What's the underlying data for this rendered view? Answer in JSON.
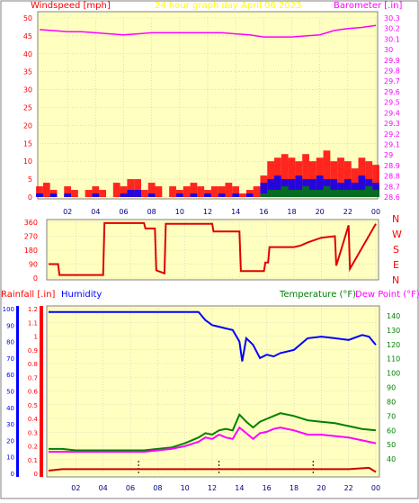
{
  "header": {
    "left_label": "Windspeed [mph]",
    "title": "24 hour graph day   April 06 2023",
    "right_label": "Barometer [.in]"
  },
  "direction_labels": [
    "N",
    "W",
    "S",
    "E",
    "N"
  ],
  "bottom_header": {
    "rain_label": "Rainfall [.in]",
    "humidity_label": "Humidity",
    "temp_label": "Temperature (°F)",
    "dew_label": "Dew Point (°F)"
  },
  "colors": {
    "plot_bg": "#ffffc0",
    "wind": "#ff0000",
    "gust": "#0000ff",
    "avg": "#008000",
    "barometer": "#ff00ff",
    "direction": "#e00000",
    "rain": "#ff0000",
    "humidity": "#0000ff",
    "temperature": "#008000",
    "dewpoint": "#ff00ff",
    "grid": "#c8c8c8",
    "header_text": "#ffff00"
  },
  "chart_data": [
    {
      "type": "bar",
      "name": "wind-barometer",
      "x_ticks": [
        "02",
        "04",
        "06",
        "08",
        "10",
        "12",
        "14",
        "16",
        "18",
        "20",
        "22",
        "00"
      ],
      "y_left": {
        "label": "Windspeed [mph]",
        "ylim": [
          0,
          50
        ],
        "ticks": [
          "0",
          "5",
          "10",
          "15",
          "20",
          "25",
          "30",
          "35",
          "40",
          "45",
          "50"
        ]
      },
      "y_right": {
        "label": "Barometer [.in]",
        "ylim": [
          28.6,
          30.3
        ],
        "ticks": [
          "28.6",
          "28.7",
          "28.8",
          "28.9",
          "29",
          "29.1",
          "29.2",
          "29.3",
          "29.4",
          "29.5",
          "29.6",
          "29.7",
          "29.8",
          "29.9",
          "30",
          "30.1",
          "30.2",
          "30.3"
        ]
      },
      "grid": true,
      "series": [
        {
          "key": "windspeed",
          "kind": "bars",
          "color": "#ff0000",
          "x": [
            0,
            0.5,
            1,
            1.5,
            2,
            2.5,
            3,
            3.5,
            4,
            4.5,
            5,
            5.5,
            6,
            6.5,
            7,
            7.5,
            8,
            8.5,
            9,
            9.5,
            10,
            10.5,
            11,
            11.5,
            12,
            12.5,
            13,
            13.5,
            14,
            14.5,
            15,
            15.5,
            16,
            16.5,
            17,
            17.5,
            18,
            18.5,
            19,
            19.5,
            20,
            20.5,
            21,
            21.5,
            22,
            22.5,
            23,
            23.5,
            24
          ],
          "values": [
            3,
            4,
            2,
            0,
            3,
            2,
            0,
            2,
            3,
            2,
            0,
            4,
            3,
            5,
            5,
            2,
            4,
            3,
            0,
            3,
            2,
            3,
            4,
            3,
            2,
            3,
            3,
            4,
            3,
            1,
            2,
            3,
            6,
            10,
            11,
            12,
            11,
            10,
            12,
            10,
            11,
            13,
            10,
            11,
            10,
            8,
            11,
            10,
            9
          ]
        },
        {
          "key": "gust",
          "kind": "bars",
          "color": "#0000ff",
          "x": [
            0,
            1,
            2,
            3,
            4,
            5,
            6,
            6.5,
            7,
            8,
            9,
            10,
            11,
            12,
            13,
            14,
            15,
            16,
            16.5,
            17,
            17.5,
            18,
            18.5,
            19,
            19.5,
            20,
            20.5,
            21,
            21.5,
            22,
            22.5,
            23,
            23.5,
            24
          ],
          "values": [
            1,
            1,
            1,
            0,
            1,
            0,
            1,
            2,
            2,
            1,
            0,
            1,
            1,
            1,
            1,
            1,
            1,
            4,
            5,
            6,
            5,
            5,
            6,
            5,
            5,
            6,
            5,
            5,
            4,
            5,
            4,
            6,
            5,
            4
          ]
        },
        {
          "key": "average",
          "kind": "bars",
          "color": "#008000",
          "x": [
            16,
            16.5,
            17,
            17.5,
            18,
            18.5,
            19,
            19.5,
            20,
            20.5,
            21,
            21.5,
            22,
            22.5,
            23,
            23.5,
            24
          ],
          "values": [
            1,
            2,
            2,
            3,
            2,
            2,
            3,
            2,
            2,
            3,
            2,
            2,
            2,
            2,
            2,
            3,
            2
          ]
        },
        {
          "key": "barometer",
          "kind": "line",
          "color": "#ff00ff",
          "x": [
            0,
            1,
            2,
            3,
            4,
            5,
            6,
            7,
            8,
            9,
            10,
            11,
            12,
            13,
            14,
            15,
            16,
            17,
            18,
            19,
            20,
            21,
            22,
            23,
            24
          ],
          "values": [
            30.19,
            30.18,
            30.17,
            30.17,
            30.16,
            30.15,
            30.14,
            30.15,
            30.16,
            30.16,
            30.16,
            30.16,
            30.16,
            30.16,
            30.15,
            30.14,
            30.12,
            30.12,
            30.12,
            30.13,
            30.14,
            30.18,
            30.2,
            30.21,
            30.23
          ]
        }
      ]
    },
    {
      "type": "line",
      "name": "wind-direction",
      "x_ticks": [
        "02",
        "04",
        "06",
        "08",
        "10",
        "12",
        "14",
        "16",
        "18",
        "20",
        "22",
        "00"
      ],
      "y_left": {
        "ylim": [
          0,
          360
        ],
        "ticks": [
          "0",
          "90",
          "180",
          "270",
          "360"
        ]
      },
      "grid": true,
      "series": [
        {
          "key": "direction",
          "color": "#e00000",
          "x": [
            0,
            0.7,
            0.8,
            4,
            4.1,
            7,
            7.1,
            7.8,
            7.9,
            8.5,
            8.6,
            12,
            12.1,
            14,
            14.1,
            15.8,
            15.9,
            16.1,
            16.2,
            18,
            18.5,
            19,
            20,
            21,
            21.1,
            22,
            22.1,
            24
          ],
          "values": [
            90,
            90,
            20,
            20,
            355,
            355,
            320,
            320,
            50,
            30,
            350,
            350,
            300,
            300,
            45,
            45,
            100,
            100,
            200,
            200,
            210,
            230,
            260,
            270,
            80,
            340,
            60,
            350
          ]
        }
      ]
    },
    {
      "type": "line",
      "name": "rain-humidity-temperature",
      "x_ticks": [
        "02",
        "04",
        "06",
        "08",
        "10",
        "12",
        "14",
        "16",
        "18",
        "20",
        "22",
        "00"
      ],
      "y_rain": {
        "label": "Rainfall [.in]",
        "ylim": [
          0,
          1.2
        ],
        "ticks": [
          "0",
          "0.1",
          "0.2",
          "0.3",
          "0.4",
          "0.5",
          "0.6",
          "0.7",
          "0.8",
          "0.9",
          "1",
          "1.1",
          "1.2"
        ]
      },
      "y_humidity": {
        "label": "Humidity",
        "ylim": [
          0,
          100
        ],
        "ticks": [
          "0",
          "10",
          "20",
          "30",
          "40",
          "50",
          "60",
          "70",
          "80",
          "90",
          "100"
        ]
      },
      "y_right": {
        "label": "Temperature (°F)",
        "ylim": [
          30,
          145
        ],
        "ticks": [
          "40",
          "50",
          "60",
          "70",
          "80",
          "90",
          "100",
          "110",
          "120",
          "130",
          "140"
        ]
      },
      "grid": true,
      "series": [
        {
          "key": "humidity",
          "name": "Humidity",
          "color": "#0000ff",
          "x": [
            0,
            1,
            2,
            3,
            4,
            5,
            6,
            7,
            8,
            9,
            10,
            11,
            11.5,
            12,
            12.5,
            13,
            13.5,
            14,
            14.2,
            14.5,
            15,
            15.5,
            16,
            16.5,
            17,
            18,
            19,
            20,
            21,
            22,
            23,
            23.5,
            24
          ],
          "values": [
            98,
            98,
            98,
            98,
            98,
            98,
            98,
            98,
            98,
            98,
            98,
            98,
            93,
            90,
            89,
            88,
            87,
            80,
            68,
            82,
            78,
            70,
            72,
            71,
            73,
            75,
            82,
            83,
            82,
            81,
            84,
            83,
            78
          ]
        },
        {
          "key": "temperature",
          "name": "Temperature (°F)",
          "color": "#008000",
          "x": [
            0,
            1,
            2,
            3,
            4,
            5,
            6,
            7,
            8,
            9,
            10,
            11,
            11.5,
            12,
            12.5,
            13,
            13.5,
            14,
            14.5,
            15,
            15.5,
            16,
            16.5,
            17,
            18,
            19,
            20,
            21,
            22,
            23,
            24
          ],
          "values": [
            47,
            47,
            46,
            46,
            46,
            46,
            46,
            46,
            47,
            48,
            51,
            55,
            58,
            57,
            60,
            61,
            60,
            71,
            66,
            62,
            66,
            68,
            70,
            72,
            70,
            67,
            66,
            65,
            63,
            61,
            60
          ]
        },
        {
          "key": "dewpoint",
          "name": "Dew Point (°F)",
          "color": "#ff00ff",
          "x": [
            0,
            1,
            2,
            3,
            4,
            5,
            6,
            7,
            8,
            9,
            10,
            11,
            11.5,
            12,
            12.5,
            13,
            13.5,
            14,
            14.5,
            15,
            15.5,
            16,
            16.5,
            17,
            18,
            19,
            20,
            21,
            22,
            23,
            24
          ],
          "values": [
            45,
            45,
            45,
            45,
            45,
            45,
            45,
            45,
            46,
            47,
            49,
            52,
            55,
            54,
            57,
            55,
            54,
            62,
            58,
            54,
            58,
            59,
            61,
            62,
            60,
            57,
            57,
            56,
            55,
            53,
            51
          ]
        },
        {
          "key": "rainfall",
          "name": "Rainfall [.in]",
          "color": "#cc0000",
          "x": [
            0,
            1,
            2,
            4,
            6,
            8,
            10,
            12,
            14,
            16,
            18,
            20,
            22,
            23.5,
            24
          ],
          "values": [
            0.02,
            0.03,
            0.03,
            0.03,
            0.03,
            0.03,
            0.03,
            0.03,
            0.03,
            0.03,
            0.03,
            0.03,
            0.03,
            0.04,
            0.01
          ]
        }
      ],
      "markers": [
        6.6,
        12.5,
        19.4
      ]
    }
  ]
}
